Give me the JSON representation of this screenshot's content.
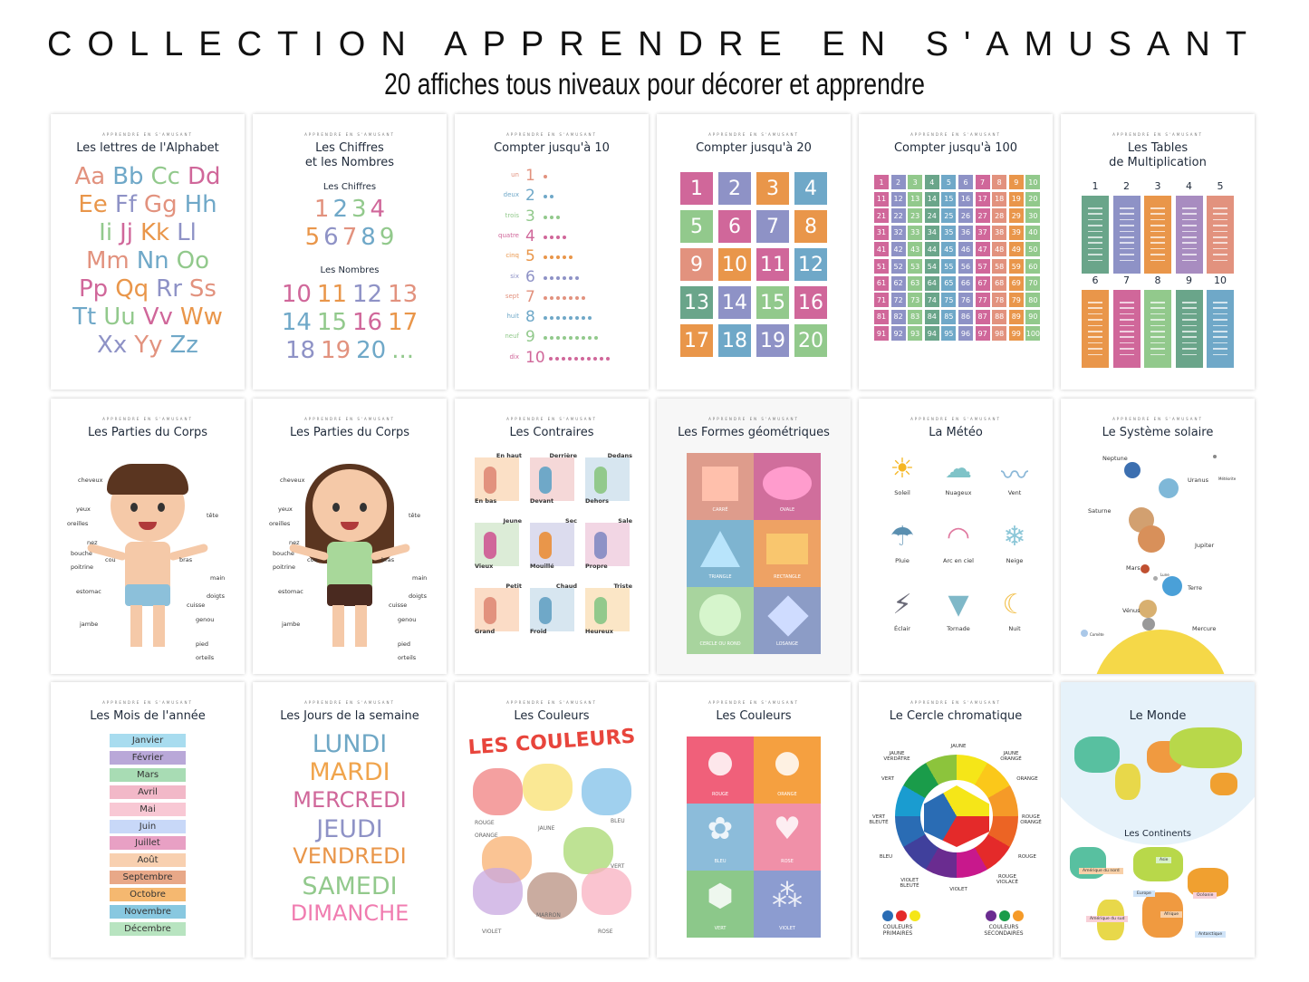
{
  "header": {
    "title": "COLLECTION APPRENDRE EN S'AMUSANT",
    "subtitle": "20 affiches tous niveaux pour décorer et apprendre"
  },
  "brand": "APPRENDRE EN S'AMUSANT",
  "colors": {
    "pink": "#d0679a",
    "blue": "#6fa8c8",
    "green": "#92c98c",
    "orange": "#e9964a",
    "purple": "#8e92c6",
    "salmon": "#e2927e",
    "teal": "#6aa58a"
  },
  "posters": [
    {
      "type": "letters",
      "title": "Les lettres de l'Alphabet",
      "rows": [
        [
          "Aa",
          "Bb",
          "Cc",
          "Dd"
        ],
        [
          "Ee",
          "Ff",
          "Gg",
          "Hh"
        ],
        [
          "Ii",
          "Jj",
          "Kk",
          "Ll"
        ],
        [
          "Mm",
          "Nn",
          "Oo"
        ],
        [
          "Pp",
          "Qq",
          "Rr",
          "Ss"
        ],
        [
          "Tt",
          "Uu",
          "Vv",
          "Ww"
        ],
        [
          "Xx",
          "Yy",
          "Zz"
        ]
      ]
    },
    {
      "type": "numbers",
      "title": "Les Chiffres\net les Nombres",
      "sub1": "Les Chiffres",
      "digits": [
        [
          "1",
          "2",
          "3",
          "4"
        ],
        [
          "5",
          "6",
          "7",
          "8",
          "9"
        ]
      ],
      "sub2": "Les Nombres",
      "nums": [
        [
          "10",
          "11",
          "12",
          "13"
        ],
        [
          "14",
          "15",
          "16",
          "17"
        ],
        [
          "18",
          "19",
          "20",
          "..."
        ]
      ]
    },
    {
      "type": "count",
      "title": "Compter jusqu'à 10",
      "words": [
        "un",
        "deux",
        "trois",
        "quatre",
        "cinq",
        "six",
        "sept",
        "huit",
        "neuf",
        "dix"
      ],
      "digits": [
        "1",
        "2",
        "3",
        "4",
        "5",
        "6",
        "7",
        "8",
        "9",
        "10"
      ]
    },
    {
      "type": "grid20",
      "title": "Compter jusqu'à 20",
      "cells": [
        "1",
        "2",
        "3",
        "4",
        "5",
        "6",
        "7",
        "8",
        "9",
        "10",
        "11",
        "12",
        "13",
        "14",
        "15",
        "16",
        "17",
        "18",
        "19",
        "20"
      ]
    },
    {
      "type": "grid100",
      "title": "Compter jusqu'à 100"
    },
    {
      "type": "tables",
      "title": "Les Tables\nde Multiplication",
      "heads": [
        "1",
        "2",
        "3",
        "4",
        "5",
        "6",
        "7",
        "8",
        "9",
        "10"
      ]
    },
    {
      "type": "body",
      "variant": "boy",
      "title": "Les Parties du Corps",
      "left": [
        "cheveux",
        "yeux",
        "oreilles",
        "nez",
        "bouche",
        "poitrine",
        "cou",
        "estomac",
        "jambe"
      ],
      "right": [
        "tête",
        "bras",
        "main",
        "doigts",
        "cuisse",
        "genou",
        "pied",
        "orteils"
      ]
    },
    {
      "type": "body",
      "variant": "girl",
      "title": "Les Parties du Corps",
      "left": [
        "cheveux",
        "yeux",
        "oreilles",
        "nez",
        "bouche",
        "poitrine",
        "cou",
        "estomac",
        "jambe"
      ],
      "right": [
        "tête",
        "bras",
        "main",
        "doigts",
        "cuisse",
        "genou",
        "pied",
        "orteils"
      ]
    },
    {
      "type": "contraires",
      "title": "Les Contraires",
      "cells": [
        [
          "En haut",
          "En bas"
        ],
        [
          "Derrière",
          "Devant"
        ],
        [
          "Dedans",
          "Dehors"
        ],
        [
          "Jeune",
          "Vieux"
        ],
        [
          "Sec",
          "Mouillé"
        ],
        [
          "Sale",
          "Propre"
        ],
        [
          "Petit",
          "Grand"
        ],
        [
          "Chaud",
          "Froid"
        ],
        [
          "Triste",
          "Heureux"
        ]
      ]
    },
    {
      "type": "shapes",
      "title": "Les Formes géométriques",
      "cells": [
        "CARRÉ",
        "OVALE",
        "TRIANGLE",
        "RECTANGLE",
        "CERCLE OU ROND",
        "LOSANGE"
      ]
    },
    {
      "type": "meteo",
      "title": "La Météo",
      "cells": [
        "Soleil",
        "Nuageux",
        "Vent",
        "Pluie",
        "Arc en ciel",
        "Neige",
        "Éclair",
        "Tornade",
        "Nuit"
      ]
    },
    {
      "type": "solar",
      "title": "Le Système solaire",
      "planets": [
        "Neptune",
        "Météorite",
        "Uranus",
        "Saturne",
        "Jupiter",
        "Mars",
        "Lune",
        "Terre",
        "Vénus",
        "Mercure",
        "Comète"
      ]
    },
    {
      "type": "months",
      "title": "Les Mois de l'année",
      "months": [
        "Janvier",
        "Février",
        "Mars",
        "Avril",
        "Mai",
        "Juin",
        "Juillet",
        "Août",
        "Septembre",
        "Octobre",
        "Novembre",
        "Décembre"
      ]
    },
    {
      "type": "days",
      "title": "Les Jours de la semaine",
      "days": [
        "LUNDI",
        "MARDI",
        "MERCREDI",
        "JEUDI",
        "VENDREDI",
        "SAMEDI",
        "DIMANCHE"
      ]
    },
    {
      "type": "watercolor",
      "title": "Les Couleurs",
      "banner": "LES COULEURS",
      "labels": [
        "ROUGE",
        "JAUNE",
        "BLEU",
        "ORANGE",
        "VERT",
        "VIOLET",
        "MARRON",
        "ROSE"
      ]
    },
    {
      "type": "colortiles",
      "title": "Les Couleurs",
      "cells": [
        "ROUGE",
        "ORANGE",
        "BLEU",
        "ROSE",
        "VERT",
        "VIOLET"
      ]
    },
    {
      "type": "wheel",
      "title": "Le Cercle chromatique",
      "labels": [
        "JAUNE",
        "JAUNE ORANGÉ",
        "ORANGE",
        "ROUGE ORANGÉ",
        "ROUGE",
        "ROUGE VIOLACÉ",
        "VIOLET",
        "VIOLET BLEUTÉ",
        "BLEU",
        "VERT BLEUTÉ",
        "VERT",
        "JAUNE VERDÂTRE"
      ],
      "primary": "COULEURS PRIMAIRES",
      "secondary": "COULEURS SECONDAIRES"
    },
    {
      "type": "world",
      "title": "Le Monde",
      "sub": "Les Continents",
      "continents": [
        "Amérique du nord",
        "Asie",
        "Europe",
        "Océanie",
        "Amérique du sud",
        "Afrique",
        "Antarctique"
      ]
    }
  ]
}
